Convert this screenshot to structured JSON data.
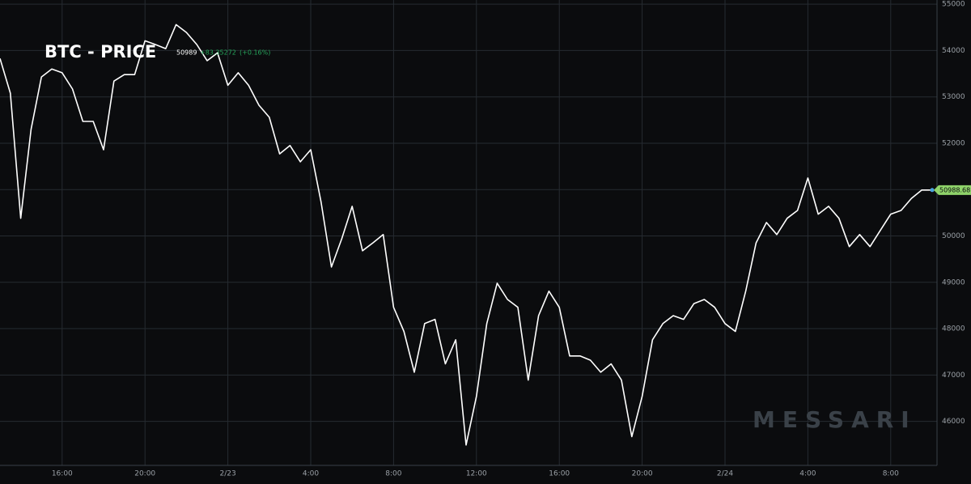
{
  "chart_data": {
    "type": "line",
    "title": "BTC - PRICE",
    "last_price": 50989,
    "change": "+83.35272",
    "change_pct": "(+0.16%)",
    "price_tag": 50988.68,
    "watermark": "MESSARI",
    "color": "#ffffff",
    "categories": [
      null,
      null,
      null,
      null,
      null,
      null,
      "16:00",
      null,
      null,
      null,
      null,
      null,
      null,
      null,
      "20:00",
      null,
      null,
      null,
      null,
      null,
      null,
      null,
      "2/23",
      null,
      null,
      null,
      null,
      null,
      null,
      null,
      "4:00",
      null,
      null,
      null,
      null,
      null,
      null,
      null,
      "8:00",
      null,
      null,
      null,
      null,
      null,
      null,
      null,
      "12:00",
      null,
      null,
      null,
      null,
      null,
      null,
      null,
      "16:00",
      null,
      null,
      null,
      null,
      null,
      null,
      null,
      "20:00",
      null,
      null,
      null,
      null,
      null,
      null,
      null,
      "2/24",
      null,
      null,
      null,
      null,
      null,
      null,
      null,
      "4:00",
      null,
      null,
      null,
      null,
      null,
      null,
      null,
      "8:00",
      null,
      null,
      null,
      null
    ],
    "values": [
      53830,
      53080,
      50380,
      52300,
      53430,
      53600,
      53520,
      53170,
      52470,
      52470,
      51860,
      53340,
      53480,
      53480,
      54210,
      54130,
      54040,
      54560,
      54390,
      54130,
      53780,
      53950,
      53250,
      53520,
      53250,
      52820,
      52560,
      51770,
      51950,
      51600,
      51860,
      50730,
      49330,
      49940,
      50640,
      49680,
      49850,
      50030,
      48460,
      47940,
      47060,
      48110,
      48200,
      47240,
      47760,
      45490,
      46540,
      48110,
      48980,
      48630,
      48460,
      46890,
      48280,
      48810,
      48460,
      47410,
      47410,
      47320,
      47060,
      47240,
      46890,
      45670,
      46540,
      47760,
      48110,
      48280,
      48200,
      48540,
      48630,
      48460,
      48110,
      47940,
      48810,
      49850,
      50290,
      50030,
      50380,
      50550,
      51250,
      50470,
      50640,
      50380,
      49770,
      50030,
      49770,
      50120,
      50470,
      50550,
      50810,
      50990,
      50990
    ],
    "ylim": [
      45050,
      55090
    ],
    "yticks": [
      46000,
      47000,
      48000,
      49000,
      50000,
      51000,
      52000,
      53000,
      54000,
      55000
    ],
    "grid": true
  }
}
